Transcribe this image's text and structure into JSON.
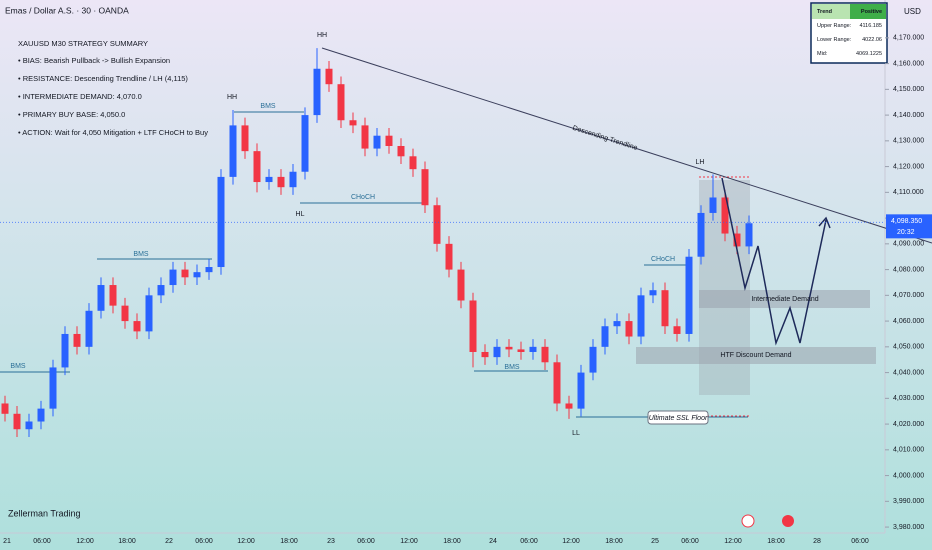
{
  "header": {
    "symbol": "Emas / Dollar A.S. · 30 · OANDA",
    "currency": "USD"
  },
  "summary": {
    "title": "XAUUSD M30 STRATEGY SUMMARY",
    "items": [
      "• BIAS: Bearish Pullback -> Bullish Expansion",
      "• RESISTANCE: Descending Trendline / LH (4,115)",
      "• INTERMEDIATE DEMAND: 4,070.0",
      "• PRIMARY BUY BASE: 4,050.0",
      "• ACTION: Wait for 4,050 Mitigation + LTF CHoCH to Buy"
    ]
  },
  "table": {
    "rows": [
      [
        "Trend",
        "Positive"
      ],
      [
        "Upper Range:",
        "4116.185"
      ],
      [
        "Lower Range:",
        "4022.06"
      ],
      [
        "Mid:",
        "4069.1225"
      ]
    ]
  },
  "annotations": {
    "hh": "HH",
    "hl": "HL",
    "lh": "LH",
    "ll": "LL",
    "bms": "BMS",
    "choch": "CHoCH",
    "trendline": "Descending Trendline",
    "intermediate": "Intermediate Demand",
    "htf": "HTF Discount Demand",
    "ssl": "Ultimate SSL Floor"
  },
  "footer": "Zellerman Trading",
  "countdown": "20:32",
  "chart_data": {
    "type": "candlestick",
    "categories": [
      "21",
      "06:00",
      "12:00",
      "18:00",
      "22",
      "06:00",
      "12:00",
      "18:00",
      "23",
      "06:00",
      "12:00",
      "18:00",
      "24",
      "06:00",
      "12:00",
      "18:00",
      "25",
      "06:00",
      "12:00",
      "18:00",
      "28",
      "06:00"
    ],
    "open": [
      4028,
      4024,
      4018,
      4021,
      4026,
      4042,
      4055,
      4050,
      4064,
      4074,
      4066,
      4060,
      4056,
      4070,
      4074,
      4080,
      4077,
      4079,
      4081,
      4116,
      4136,
      4126,
      4114,
      4116,
      4112,
      4118,
      4140,
      4158,
      4152,
      4138,
      4136,
      4127,
      4132,
      4128,
      4124,
      4119,
      4105,
      4090,
      4080,
      4068,
      4048,
      4046,
      4050,
      4049,
      4048,
      4050,
      4044,
      4028,
      4026,
      4040,
      4050,
      4058,
      4060,
      4054,
      4070,
      4072,
      4058,
      4055,
      4085,
      4102,
      4108,
      4094,
      4089
    ],
    "high": [
      4031,
      4027,
      4024,
      4029,
      4045,
      4058,
      4058,
      4067,
      4077,
      4077,
      4069,
      4063,
      4073,
      4077,
      4083,
      4083,
      4082,
      4084,
      4119,
      4142,
      4139,
      4129,
      4119,
      4119,
      4121,
      4143,
      4166,
      4161,
      4155,
      4141,
      4139,
      4135,
      4135,
      4131,
      4127,
      4122,
      4108,
      4093,
      4083,
      4071,
      4051,
      4053,
      4053,
      4052,
      4053,
      4053,
      4047,
      4031,
      4043,
      4053,
      4061,
      4063,
      4063,
      4073,
      4075,
      4075,
      4061,
      4088,
      4105,
      4117,
      4111,
      4097,
      4101
    ],
    "low": [
      4021,
      4015,
      4015,
      4018,
      4023,
      4039,
      4047,
      4047,
      4061,
      4063,
      4057,
      4053,
      4053,
      4067,
      4071,
      4074,
      4074,
      4076,
      4078,
      4113,
      4123,
      4110,
      4111,
      4109,
      4109,
      4115,
      4137,
      4149,
      4135,
      4133,
      4124,
      4124,
      4125,
      4121,
      4116,
      4102,
      4087,
      4077,
      4065,
      4042,
      4043,
      4043,
      4046,
      4045,
      4045,
      4041,
      4025,
      4022,
      4023,
      4037,
      4047,
      4055,
      4051,
      4051,
      4067,
      4055,
      4052,
      4052,
      4082,
      4099,
      4091,
      4086,
      4086
    ],
    "close": [
      4024,
      4018,
      4021,
      4026,
      4042,
      4055,
      4050,
      4064,
      4074,
      4066,
      4060,
      4056,
      4070,
      4074,
      4080,
      4077,
      4079,
      4081,
      4116,
      4136,
      4126,
      4114,
      4116,
      4112,
      4118,
      4140,
      4158,
      4152,
      4138,
      4136,
      4127,
      4132,
      4128,
      4124,
      4119,
      4105,
      4090,
      4080,
      4068,
      4048,
      4046,
      4050,
      4049,
      4048,
      4050,
      4044,
      4028,
      4026,
      4040,
      4050,
      4058,
      4060,
      4054,
      4070,
      4072,
      4058,
      4055,
      4085,
      4102,
      4108,
      4094,
      4089,
      4098
    ],
    "up_color": "#2962ff",
    "down_color": "#f23645",
    "current_price": {
      "value": 4098.35,
      "label": "4,098.350"
    },
    "ylim": [
      3977.7,
      4184.7
    ],
    "yticks": [
      {
        "value": 3980,
        "label": "3,980.000"
      },
      {
        "value": 3990,
        "label": "3,990.000"
      },
      {
        "value": 4000,
        "label": "4,000.000"
      },
      {
        "value": 4010,
        "label": "4,010.000"
      },
      {
        "value": 4020,
        "label": "4,020.000"
      },
      {
        "value": 4030,
        "label": "4,030.000"
      },
      {
        "value": 4040,
        "label": "4,040.000"
      },
      {
        "value": 4050,
        "label": "4,050.000"
      },
      {
        "value": 4060,
        "label": "4,060.000"
      },
      {
        "value": 4070,
        "label": "4,070.000"
      },
      {
        "value": 4080,
        "label": "4,080.000"
      },
      {
        "value": 4090,
        "label": "4,090.000"
      },
      {
        "value": 4100,
        "label": "4,100.000"
      },
      {
        "value": 4110,
        "label": "4,110.000"
      },
      {
        "value": 4120,
        "label": "4,120.000"
      },
      {
        "value": 4130,
        "label": "4,130.000"
      },
      {
        "value": 4140,
        "label": "4,140.000"
      },
      {
        "value": 4150,
        "label": "4,150.000"
      },
      {
        "value": 4160,
        "label": "4,160.000"
      },
      {
        "value": 4170,
        "label": "4,170.000"
      }
    ]
  }
}
